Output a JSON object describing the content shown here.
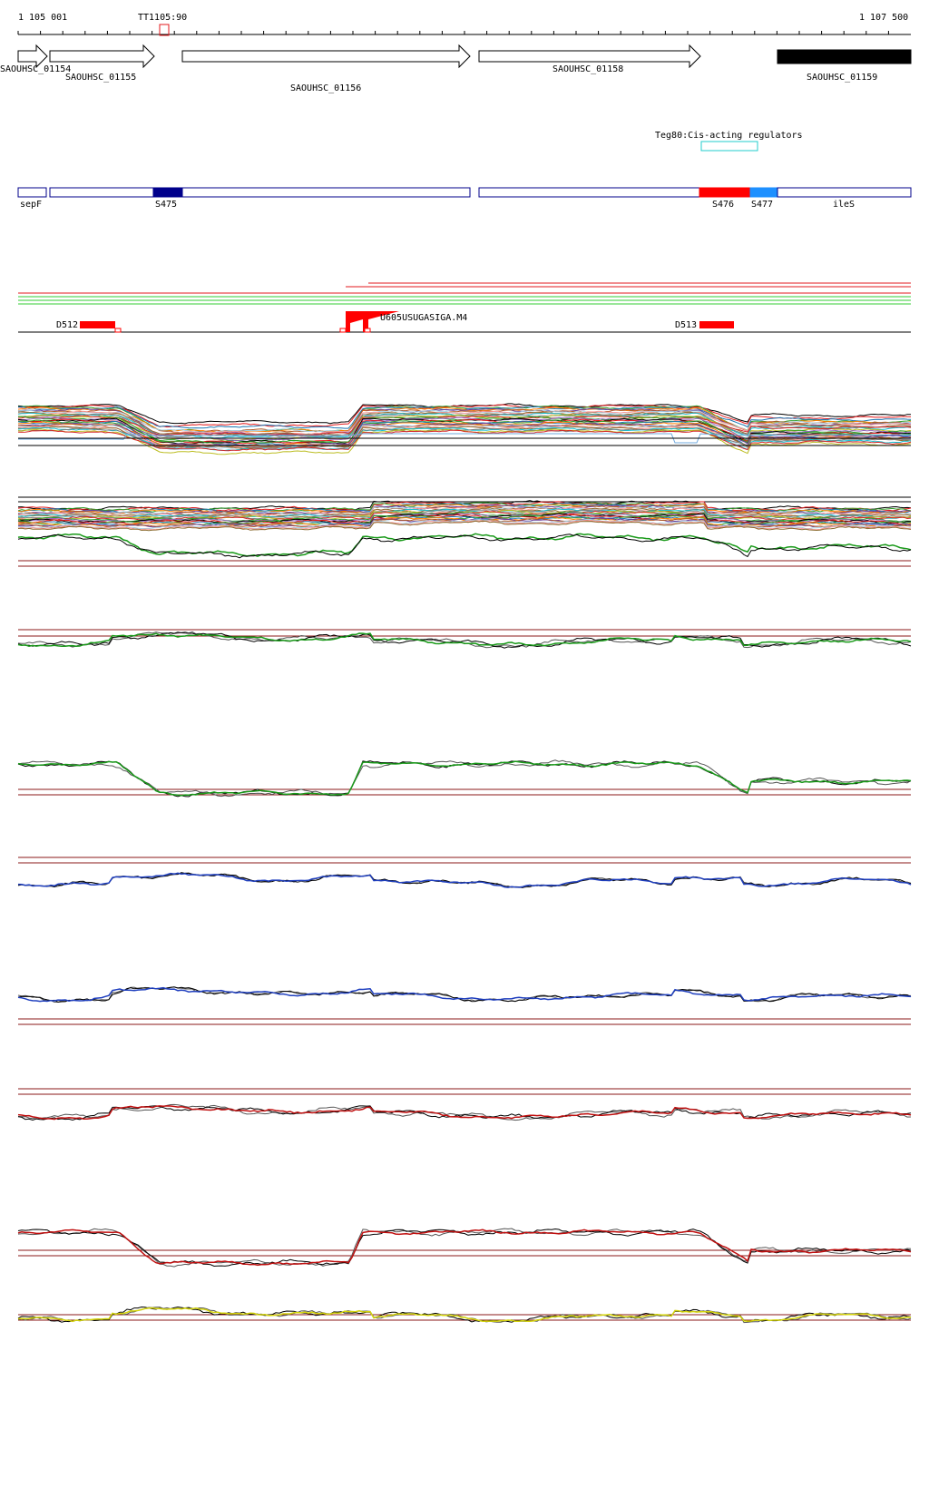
{
  "ruler": {
    "start_label": "1 105 001",
    "end_label": "1 107 500",
    "marker_label": "TT1105:90"
  },
  "genes": [
    {
      "label": "SAOUHSC_01154",
      "style": "arrow",
      "fill": "#ffffff"
    },
    {
      "label": "SAOUHSC_01155",
      "style": "arrow",
      "fill": "#ffffff"
    },
    {
      "label": "SAOUHSC_01156",
      "style": "arrow",
      "fill": "#ffffff"
    },
    {
      "label": "SAOUHSC_01158",
      "style": "arrow",
      "fill": "#ffffff"
    },
    {
      "label": "SAOUHSC_01159",
      "style": "box",
      "fill": "#000000"
    }
  ],
  "regulator": {
    "label": "Teg80:Cis-acting regulators",
    "color": "#22cccc"
  },
  "segments": [
    {
      "label": "sepF",
      "fill": "#ffffff"
    },
    {
      "label": "",
      "fill": "#ffffff"
    },
    {
      "label": "S475",
      "fill": "#00008b"
    },
    {
      "label": "",
      "fill": "#ffffff"
    },
    {
      "label": "",
      "fill": "#ffffff"
    },
    {
      "label": "S476",
      "fill": "#ff0000"
    },
    {
      "label": "S477",
      "fill": "#1e90ff"
    },
    {
      "label": "ileS",
      "fill": "#ffffff"
    }
  ],
  "features": [
    {
      "label": "D512"
    },
    {
      "label": "U605USUGASIGA.M4"
    },
    {
      "label": "D513"
    }
  ],
  "colors": {
    "segment_border": "#00008b",
    "feature_red": "#ff0000",
    "track_line_red": "#e31a1c",
    "track_line_green": "#33cc33",
    "guide_line": "#8b1a1a",
    "series": [
      "#000000",
      "#1a9a1a",
      "#1f3fbf",
      "#c01010",
      "#d4d40a"
    ]
  },
  "tracks": [
    {
      "color": "#1a9a1a"
    },
    {
      "color": "#1a9a1a"
    },
    {
      "color": "#1f3fbf"
    },
    {
      "color": "#1f3fbf"
    },
    {
      "color": "#c01010"
    },
    {
      "color": "#c01010"
    },
    {
      "color": "#d4d40a"
    },
    {
      "color": "#d4d40a"
    }
  ]
}
